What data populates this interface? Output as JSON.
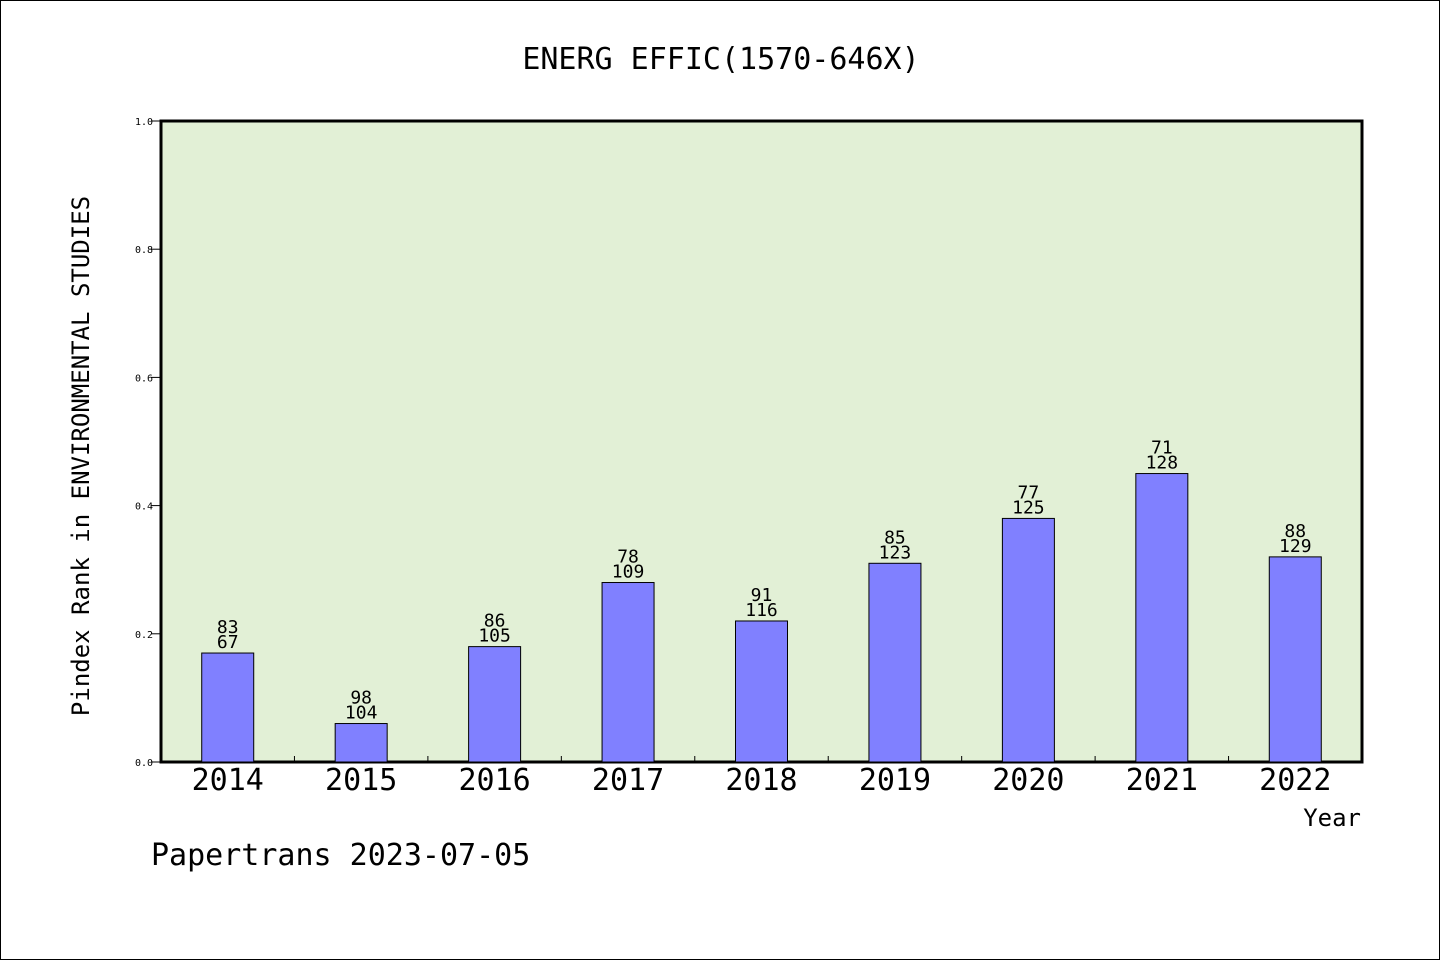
{
  "chart_data": {
    "type": "bar",
    "title": "ENERG EFFIC(1570-646X)",
    "xlabel": "Year",
    "ylabel": "Pindex Rank in ENVIRONMENTAL STUDIES",
    "ylim": [
      0,
      1.0
    ],
    "yticks": [
      "0.0",
      "0.2",
      "0.4",
      "0.6",
      "0.8",
      "1.0"
    ],
    "categories": [
      "2014",
      "2015",
      "2016",
      "2017",
      "2018",
      "2019",
      "2020",
      "2021",
      "2022"
    ],
    "values": [
      0.17,
      0.06,
      0.18,
      0.28,
      0.22,
      0.31,
      0.38,
      0.45,
      0.32
    ],
    "labels_top": [
      "83",
      "98",
      "86",
      "78",
      "91",
      "85",
      "77",
      "71",
      "88"
    ],
    "labels_bottom": [
      "67",
      "104",
      "105",
      "109",
      "116",
      "123",
      "125",
      "128",
      "129"
    ],
    "grid": false,
    "colors": {
      "bar": "#8080ff",
      "plot_bg": "#e2f0d6",
      "axis": "#000000"
    }
  },
  "footer": {
    "text": "Papertrans 2023-07-05"
  }
}
